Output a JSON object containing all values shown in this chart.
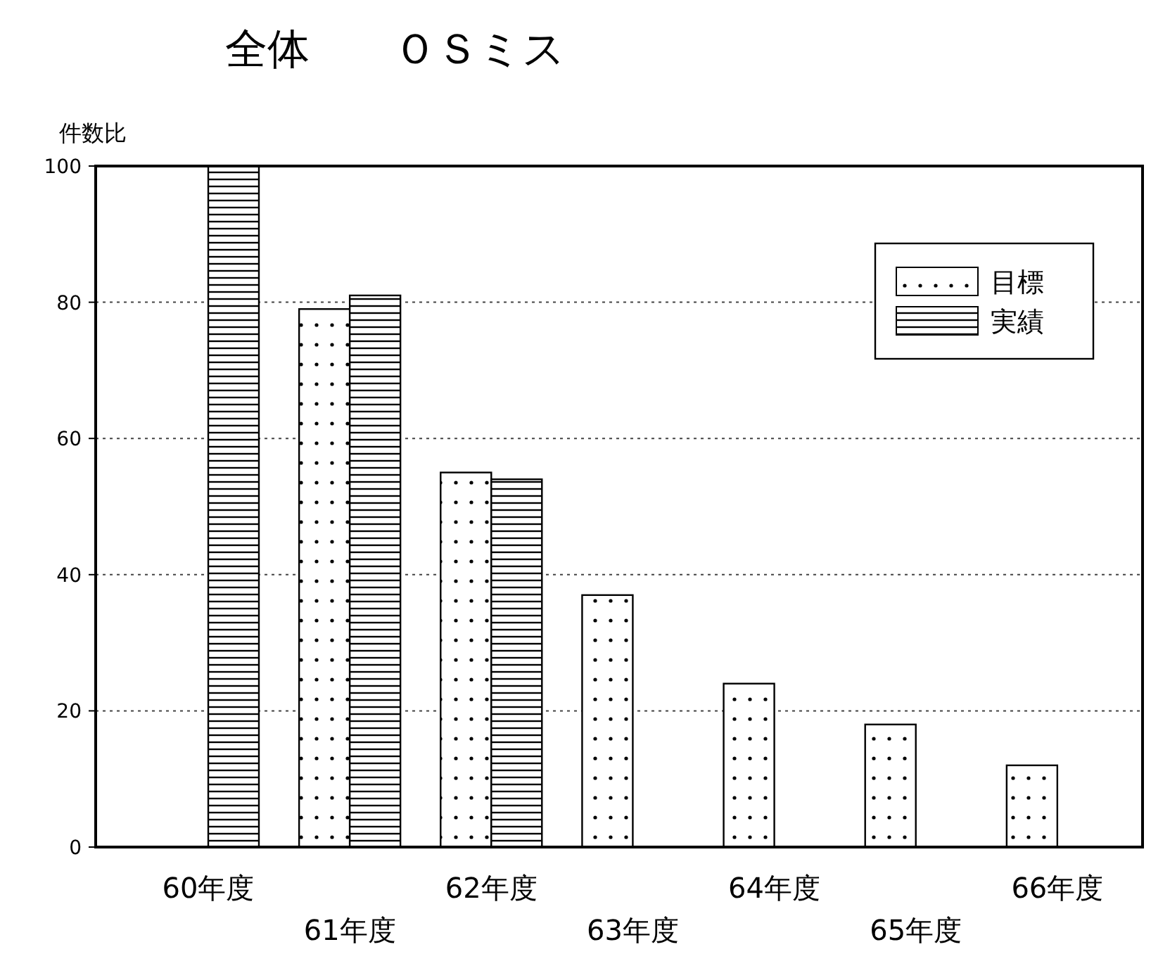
{
  "chart_data": {
    "type": "bar",
    "title": "全体　　ＯＳミス",
    "ylabel": "件数比",
    "categories": [
      "60年度",
      "61年度",
      "62年度",
      "63年度",
      "64年度",
      "65年度",
      "66年度"
    ],
    "series": [
      {
        "name": "目標",
        "color": "#000000",
        "values": [
          null,
          79,
          55,
          37,
          24,
          18,
          12
        ]
      },
      {
        "name": "実績",
        "color": "#000000",
        "values": [
          100,
          81,
          54,
          null,
          null,
          null,
          null
        ]
      }
    ],
    "ylim": [
      0,
      100
    ],
    "yticks": [
      0,
      20,
      40,
      60,
      80,
      100
    ],
    "grid": "y",
    "legend": "top right"
  }
}
